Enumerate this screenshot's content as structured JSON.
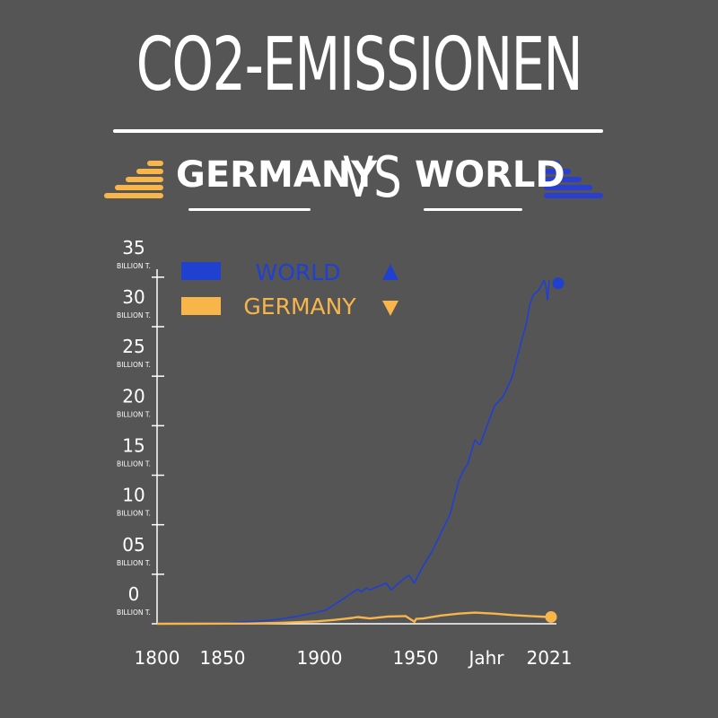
{
  "header": {
    "title": "CO2-EMISSIONEN",
    "left_label": "GERMANY",
    "vs_label": "VS",
    "right_label": "WORLD",
    "left_icon": "ascending-bars-icon",
    "right_icon": "descending-bars-icon"
  },
  "colors": {
    "background": "#555555",
    "world": "#2040d0",
    "germany": "#f7b54a",
    "axis": "#ffffff"
  },
  "chart_data": {
    "type": "line",
    "xlabel": "Jahr",
    "ylabel": "",
    "xlim": [
      1800,
      2021
    ],
    "ylim": [
      0,
      35
    ],
    "x_ticks": [
      "1800",
      "1850",
      "1900",
      "1950",
      "2021"
    ],
    "y_ticks": [
      {
        "value": 0,
        "label": "0",
        "unit": "BILLION T."
      },
      {
        "value": 5,
        "label": "05",
        "unit": "BILLION T."
      },
      {
        "value": 10,
        "label": "10",
        "unit": "BILLION T."
      },
      {
        "value": 15,
        "label": "15",
        "unit": "BILLION T."
      },
      {
        "value": 20,
        "label": "20",
        "unit": "BILLION T."
      },
      {
        "value": 25,
        "label": "25",
        "unit": "BILLION T."
      },
      {
        "value": 30,
        "label": "30",
        "unit": "BILLION T."
      },
      {
        "value": 35,
        "label": "35",
        "unit": "BILLION T."
      }
    ],
    "legend_position": "top-left",
    "series": [
      {
        "name": "WORLD",
        "trend": "up",
        "color": "#2040d0",
        "x": [
          1800,
          1820,
          1840,
          1850,
          1860,
          1870,
          1880,
          1890,
          1895,
          1900,
          1905,
          1910,
          1913,
          1915,
          1918,
          1920,
          1925,
          1929,
          1932,
          1935,
          1940,
          1942,
          1945,
          1946,
          1950,
          1955,
          1960,
          1965,
          1970,
          1973,
          1975,
          1979,
          1982,
          1985,
          1990,
          1995,
          2000,
          2005,
          2008,
          2010,
          2012,
          2015,
          2018,
          2019,
          2020,
          2021
        ],
        "y": [
          0.03,
          0.05,
          0.1,
          0.2,
          0.3,
          0.5,
          0.8,
          1.2,
          1.4,
          2.0,
          2.6,
          3.2,
          3.6,
          3.3,
          3.7,
          3.5,
          3.9,
          4.2,
          3.5,
          4.0,
          4.8,
          5.0,
          4.2,
          4.6,
          6.0,
          7.5,
          9.4,
          11.3,
          14.8,
          16.0,
          16.5,
          19.0,
          18.5,
          20.0,
          22.5,
          23.5,
          25.5,
          29.0,
          31.0,
          33.0,
          34.0,
          34.5,
          35.5,
          35.0,
          33.5,
          35.5
        ]
      },
      {
        "name": "GERMANY",
        "trend": "down",
        "color": "#f7b54a",
        "x": [
          1800,
          1850,
          1870,
          1890,
          1900,
          1910,
          1913,
          1920,
          1930,
          1940,
          1945,
          1946,
          1950,
          1960,
          1970,
          1979,
          1985,
          1990,
          2000,
          2010,
          2021
        ],
        "y": [
          0.0,
          0.02,
          0.1,
          0.25,
          0.4,
          0.6,
          0.7,
          0.55,
          0.75,
          0.8,
          0.2,
          0.5,
          0.55,
          0.85,
          1.05,
          1.15,
          1.1,
          1.05,
          0.9,
          0.8,
          0.7
        ]
      }
    ]
  }
}
